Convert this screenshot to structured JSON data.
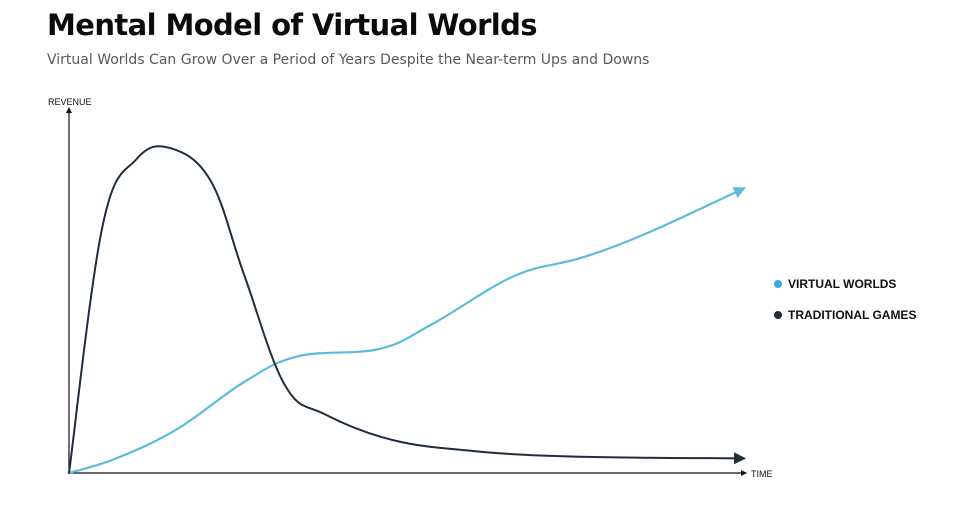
{
  "title": "Mental Model of Virtual Worlds",
  "subtitle": "Virtual Worlds Can Grow Over a Period of Years Despite the Near-term Ups and Downs",
  "chart_data": {
    "type": "line",
    "title": "Mental Model of Virtual Worlds",
    "subtitle": "Virtual Worlds Can Grow Over a Period of Years Despite the Near-term Ups and Downs",
    "xlabel": "TIME",
    "ylabel": "REVENUE",
    "xlim": [
      0,
      10
    ],
    "ylim": [
      0,
      10
    ],
    "grid": false,
    "legend_position": "right",
    "axis_ticks": false,
    "series": [
      {
        "name": "VIRTUAL WORLDS",
        "color": "#5bbcd9",
        "x": [
          0,
          0.7,
          1.6,
          2.6,
          3.4,
          4.6,
          5.4,
          6.6,
          7.6,
          8.6,
          10
        ],
        "y": [
          0,
          0.4,
          1.2,
          2.5,
          3.2,
          3.4,
          4.1,
          5.4,
          5.9,
          6.6,
          7.8
        ]
      },
      {
        "name": "TRADITIONAL GAMES",
        "color": "#1f2d3d",
        "x": [
          0,
          0.5,
          1.0,
          1.5,
          2.1,
          2.6,
          3.2,
          3.8,
          4.8,
          6.0,
          7.5,
          10
        ],
        "y": [
          0,
          6.8,
          8.6,
          8.9,
          8.0,
          5.4,
          2.4,
          1.6,
          0.9,
          0.6,
          0.45,
          0.4
        ]
      }
    ]
  }
}
